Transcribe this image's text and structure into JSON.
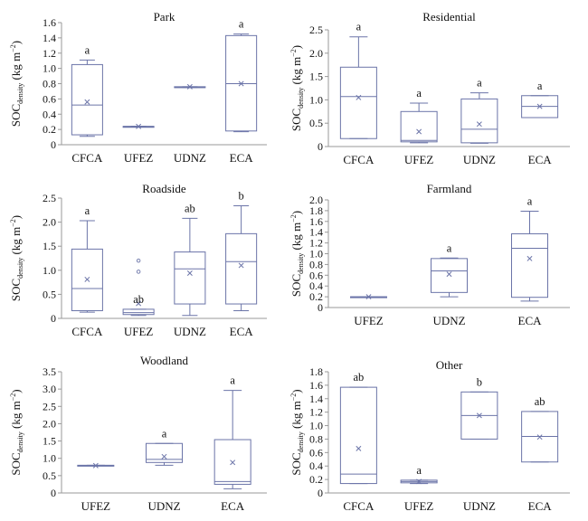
{
  "colors": {
    "box": "#6b74a8",
    "axis": "#9a9a9a",
    "text": "#111111"
  },
  "ylabel": {
    "main": "SOC",
    "sub": "density",
    "unit": "(kg m",
    "exp": "−2",
    "close": ")"
  },
  "chart_data": [
    {
      "type": "box",
      "title": "Park",
      "ylim": [
        0,
        1.6
      ],
      "yticks": [
        "0",
        "0.2",
        "0.4",
        "0.6",
        "0.8",
        "1.0",
        "1.2",
        "1.4",
        "1.6"
      ],
      "categories": [
        "CFCA",
        "UFEZ",
        "UDNZ",
        "ECA"
      ],
      "boxes": [
        {
          "min": 0.11,
          "q1": 0.13,
          "median": 0.52,
          "q3": 1.05,
          "max": 1.11,
          "mean": 0.56,
          "outliers": []
        },
        {
          "min": 0.24,
          "q1": 0.24,
          "median": 0.24,
          "q3": 0.24,
          "max": 0.24,
          "mean": 0.24,
          "outliers": []
        },
        {
          "min": 0.75,
          "q1": 0.75,
          "median": 0.75,
          "q3": 0.76,
          "max": 0.76,
          "mean": 0.76,
          "outliers": []
        },
        {
          "min": 0.17,
          "q1": 0.18,
          "median": 0.8,
          "q3": 1.43,
          "max": 1.45,
          "mean": 0.8,
          "outliers": []
        }
      ],
      "letters": [
        "a",
        "",
        "",
        "a"
      ]
    },
    {
      "type": "box",
      "title": "Residential",
      "ylim": [
        0,
        2.5
      ],
      "yticks": [
        "0",
        "0.5",
        "1.0",
        "1.5",
        "2.0",
        "2.5"
      ],
      "categories": [
        "CFCA",
        "UFEZ",
        "UDNZ",
        "ECA"
      ],
      "boxes": [
        {
          "min": 0.17,
          "q1": 0.17,
          "median": 1.07,
          "q3": 1.7,
          "max": 2.35,
          "mean": 1.05,
          "outliers": []
        },
        {
          "min": 0.08,
          "q1": 0.1,
          "median": 0.13,
          "q3": 0.75,
          "max": 0.93,
          "mean": 0.32,
          "outliers": []
        },
        {
          "min": 0.07,
          "q1": 0.08,
          "median": 0.37,
          "q3": 1.02,
          "max": 1.15,
          "mean": 0.48,
          "outliers": []
        },
        {
          "min": 0.62,
          "q1": 0.62,
          "median": 0.86,
          "q3": 1.09,
          "max": 1.09,
          "mean": 0.86,
          "outliers": []
        }
      ],
      "letters": [
        "a",
        "a",
        "a",
        "a"
      ]
    },
    {
      "type": "box",
      "title": "Roadside",
      "ylim": [
        0,
        2.5
      ],
      "yticks": [
        "0",
        "0.5",
        "1.0",
        "1.5",
        "2.0",
        "2.5"
      ],
      "categories": [
        "CFCA",
        "UFEZ",
        "UDNZ",
        "ECA"
      ],
      "boxes": [
        {
          "min": 0.13,
          "q1": 0.16,
          "median": 0.62,
          "q3": 1.44,
          "max": 2.03,
          "mean": 0.81,
          "outliers": []
        },
        {
          "min": 0.06,
          "q1": 0.08,
          "median": 0.12,
          "q3": 0.19,
          "max": 0.19,
          "mean": 0.31,
          "outliers": [
            0.97,
            1.2
          ]
        },
        {
          "min": 0.06,
          "q1": 0.3,
          "median": 1.03,
          "q3": 1.38,
          "max": 2.08,
          "mean": 0.94,
          "outliers": []
        },
        {
          "min": 0.16,
          "q1": 0.3,
          "median": 1.18,
          "q3": 1.76,
          "max": 2.34,
          "mean": 1.1,
          "outliers": []
        }
      ],
      "letters": [
        "a",
        "ab",
        "ab",
        "b"
      ]
    },
    {
      "type": "box",
      "title": "Farmland",
      "ylim": [
        0,
        2.0
      ],
      "yticks": [
        "0",
        "0.2",
        "0.4",
        "0.6",
        "0.8",
        "1.0",
        "1.2",
        "1.4",
        "1.6",
        "1.8",
        "2.0"
      ],
      "categories": [
        "UFEZ",
        "UDNZ",
        "ECA"
      ],
      "boxes": [
        {
          "min": 0.2,
          "q1": 0.2,
          "median": 0.2,
          "q3": 0.2,
          "max": 0.2,
          "mean": 0.2,
          "outliers": []
        },
        {
          "min": 0.2,
          "q1": 0.28,
          "median": 0.68,
          "q3": 0.91,
          "max": 0.92,
          "mean": 0.62,
          "outliers": []
        },
        {
          "min": 0.12,
          "q1": 0.19,
          "median": 1.1,
          "q3": 1.37,
          "max": 1.79,
          "mean": 0.91,
          "outliers": []
        }
      ],
      "letters": [
        "",
        "a",
        "a"
      ]
    },
    {
      "type": "box",
      "title": "Woodland",
      "ylim": [
        0,
        3.5
      ],
      "yticks": [
        "0",
        "0.5",
        "1.0",
        "1.5",
        "2.0",
        "2.5",
        "3.0",
        "3.5"
      ],
      "categories": [
        "UFEZ",
        "UDNZ",
        "ECA"
      ],
      "boxes": [
        {
          "min": 0.79,
          "q1": 0.79,
          "median": 0.79,
          "q3": 0.8,
          "max": 0.8,
          "mean": 0.79,
          "outliers": []
        },
        {
          "min": 0.8,
          "q1": 0.88,
          "median": 0.97,
          "q3": 1.43,
          "max": 1.43,
          "mean": 1.05,
          "outliers": []
        },
        {
          "min": 0.12,
          "q1": 0.25,
          "median": 0.33,
          "q3": 1.54,
          "max": 2.96,
          "mean": 0.88,
          "outliers": []
        }
      ],
      "letters": [
        "",
        "a",
        "a"
      ]
    },
    {
      "type": "box",
      "title": "Other",
      "ylim": [
        0,
        1.8
      ],
      "yticks": [
        "0",
        "0.2",
        "0.4",
        "0.6",
        "0.8",
        "1.0",
        "1.2",
        "1.4",
        "1.6",
        "1.8"
      ],
      "categories": [
        "CFCA",
        "UFEZ",
        "UDNZ",
        "ECA"
      ],
      "boxes": [
        {
          "min": 0.14,
          "q1": 0.14,
          "median": 0.28,
          "q3": 1.57,
          "max": 1.57,
          "mean": 0.66,
          "outliers": []
        },
        {
          "min": 0.14,
          "q1": 0.15,
          "median": 0.17,
          "q3": 0.19,
          "max": 0.19,
          "mean": 0.17,
          "outliers": []
        },
        {
          "min": 0.8,
          "q1": 0.8,
          "median": 1.15,
          "q3": 1.5,
          "max": 1.5,
          "mean": 1.15,
          "outliers": []
        },
        {
          "min": 0.46,
          "q1": 0.46,
          "median": 0.84,
          "q3": 1.21,
          "max": 1.21,
          "mean": 0.83,
          "outliers": []
        }
      ],
      "letters": [
        "ab",
        "a",
        "b",
        "ab"
      ]
    }
  ]
}
